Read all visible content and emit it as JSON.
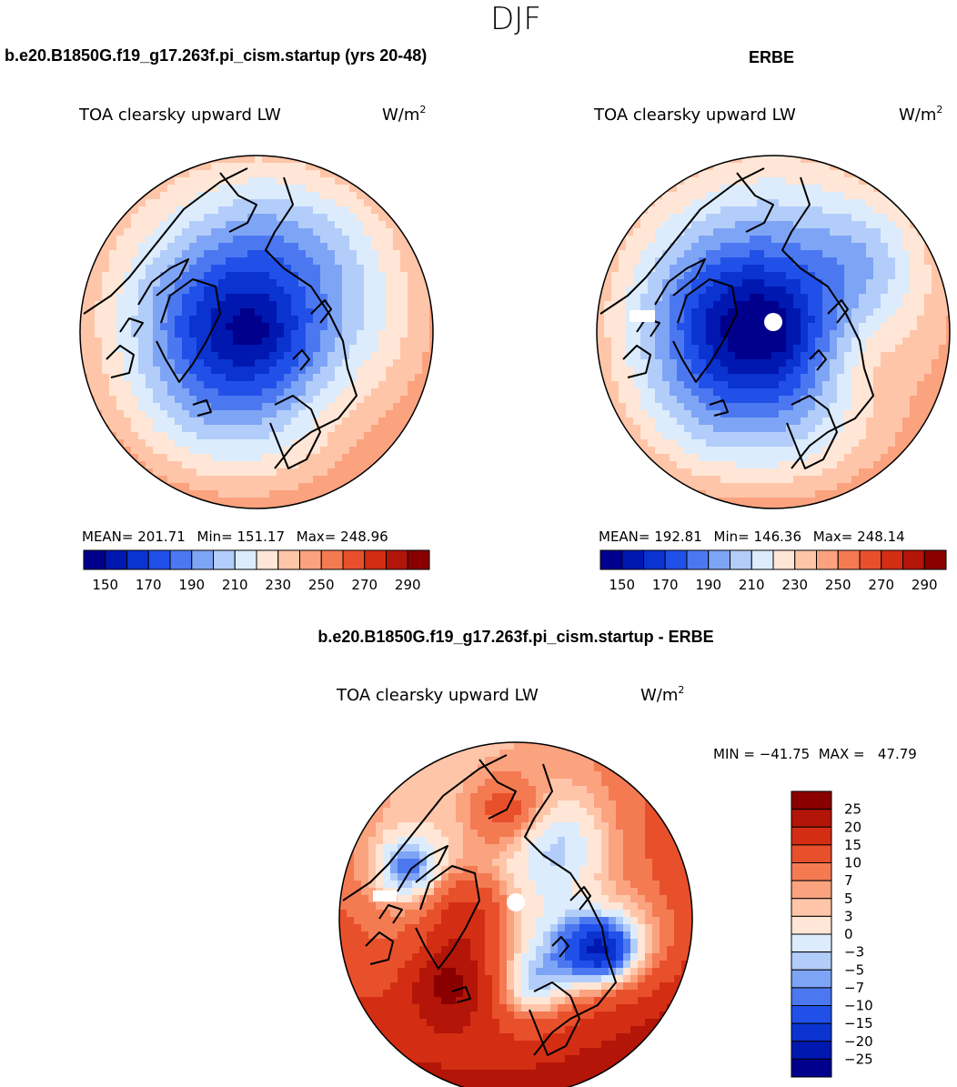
{
  "figure": {
    "title": "DJF",
    "diff_title": "b.e20.B1850G.f19_g17.263f.pi_cism.startup - ERBE"
  },
  "chart_data": [
    {
      "type": "heatmap",
      "projection": "north polar stereographic",
      "title": "b.e20.B1850G.f19_g17.263f.pi_cism.startup (yrs 20-48)",
      "variable": "TOA clearsky upward LW",
      "units_base": "W/m",
      "units_exp": "2",
      "stats": {
        "mean_label": "MEAN=",
        "mean": "201.71",
        "min_label": "Min=",
        "min": "151.17",
        "max_label": "Max=",
        "max": "248.96"
      },
      "colorbar": {
        "ticks": [
          "150",
          "170",
          "190",
          "210",
          "230",
          "250",
          "270",
          "290"
        ],
        "colors": [
          "#00008c",
          "#0018b0",
          "#0a33d0",
          "#2150e8",
          "#4b78f0",
          "#7ea4f5",
          "#b3cdfa",
          "#dcecfc",
          "#ffe6d6",
          "#ffc5a8",
          "#fba27f",
          "#f47a52",
          "#e8502c",
          "#d32e13",
          "#b31508",
          "#8a0000"
        ]
      },
      "field": {
        "polar_value": 165,
        "equatorward_value": 240,
        "gradient_deg": 30,
        "offset_deg": 80,
        "anomalies": [
          {
            "lon": 100,
            "colat": 8,
            "sigma": 16,
            "amp": -14
          },
          {
            "lon": 200,
            "colat": 14,
            "sigma": 13,
            "amp": -16
          },
          {
            "lon": 280,
            "colat": 25,
            "sigma": 12,
            "amp": -10
          },
          {
            "lon": 40,
            "colat": 30,
            "sigma": 12,
            "amp": 12
          },
          {
            "lon": 130,
            "colat": 34,
            "sigma": 14,
            "amp": -6
          },
          {
            "lon": 315,
            "colat": 36,
            "sigma": 10,
            "amp": -5
          }
        ]
      }
    },
    {
      "type": "heatmap",
      "projection": "north polar stereographic",
      "title": "ERBE",
      "variable": "TOA clearsky upward LW",
      "units_base": "W/m",
      "units_exp": "2",
      "stats": {
        "mean_label": "MEAN=",
        "mean": "192.81",
        "min_label": "Min=",
        "min": "146.36",
        "max_label": "Max=",
        "max": "248.14"
      },
      "colorbar": {
        "ticks": [
          "150",
          "170",
          "190",
          "210",
          "230",
          "250",
          "270",
          "290"
        ],
        "colors": [
          "#00008c",
          "#0018b0",
          "#0a33d0",
          "#2150e8",
          "#4b78f0",
          "#7ea4f5",
          "#b3cdfa",
          "#dcecfc",
          "#ffe6d6",
          "#ffc5a8",
          "#fba27f",
          "#f47a52",
          "#e8502c",
          "#d32e13",
          "#b31508",
          "#8a0000"
        ]
      },
      "field": {
        "polar_value": 160,
        "equatorward_value": 238,
        "gradient_deg": 30,
        "offset_deg": 80,
        "anomalies": [
          {
            "lon": 110,
            "colat": 8,
            "sigma": 18,
            "amp": -14
          },
          {
            "lon": 200,
            "colat": 14,
            "sigma": 14,
            "amp": -22
          },
          {
            "lon": 20,
            "colat": 27,
            "sigma": 12,
            "amp": 24
          },
          {
            "lon": 320,
            "colat": 36,
            "sigma": 10,
            "amp": -12
          },
          {
            "lon": 135,
            "colat": 36,
            "sigma": 14,
            "amp": -8
          }
        ]
      }
    },
    {
      "type": "heatmap",
      "projection": "north polar stereographic",
      "title": "b.e20.B1850G.f19_g17.263f.pi_cism.startup - ERBE",
      "variable": "TOA clearsky upward LW",
      "units_base": "W/m",
      "units_exp": "2",
      "stats": {
        "text": "MIN = −41.75  MAX =   47.79"
      },
      "colorbar": {
        "orientation": "vertical",
        "ticks": [
          "25",
          "20",
          "15",
          "10",
          "7",
          "5",
          "3",
          "0",
          "−3",
          "−5",
          "−7",
          "−10",
          "−15",
          "−20",
          "−25"
        ],
        "levels": [
          25,
          20,
          15,
          10,
          7,
          5,
          3,
          0,
          -3,
          -5,
          -7,
          -10,
          -15,
          -20,
          -25
        ],
        "colors": [
          "#8a0000",
          "#b31508",
          "#d32e13",
          "#e8502c",
          "#f47a52",
          "#fba27f",
          "#ffc5a8",
          "#ffe6d6",
          "#dcecfc",
          "#b3cdfa",
          "#7ea4f5",
          "#4b78f0",
          "#2150e8",
          "#0a33d0",
          "#0018b0",
          "#00008c"
        ]
      },
      "field": {
        "polar_value": 0,
        "equatorward_value": 14,
        "gradient_deg": 40,
        "offset_deg": 70,
        "anomalies": [
          {
            "lon": 185,
            "colat": 13,
            "sigma": 9,
            "amp": 14
          },
          {
            "lon": 135,
            "colat": 26,
            "sigma": 9,
            "amp": 16
          },
          {
            "lon": 25,
            "colat": 20,
            "sigma": 8,
            "amp": -14
          },
          {
            "lon": 75,
            "colat": 20,
            "sigma": 7,
            "amp": -12
          },
          {
            "lon": 20,
            "colat": 27,
            "sigma": 6,
            "amp": -18
          },
          {
            "lon": 300,
            "colat": 24,
            "sigma": 9,
            "amp": -8
          },
          {
            "lon": 10,
            "colat": 38,
            "sigma": 11,
            "amp": -8
          },
          {
            "lon": 265,
            "colat": 30,
            "sigma": 8,
            "amp": 10
          },
          {
            "lon": 205,
            "colat": 34,
            "sigma": 6,
            "amp": -14
          }
        ]
      }
    }
  ]
}
